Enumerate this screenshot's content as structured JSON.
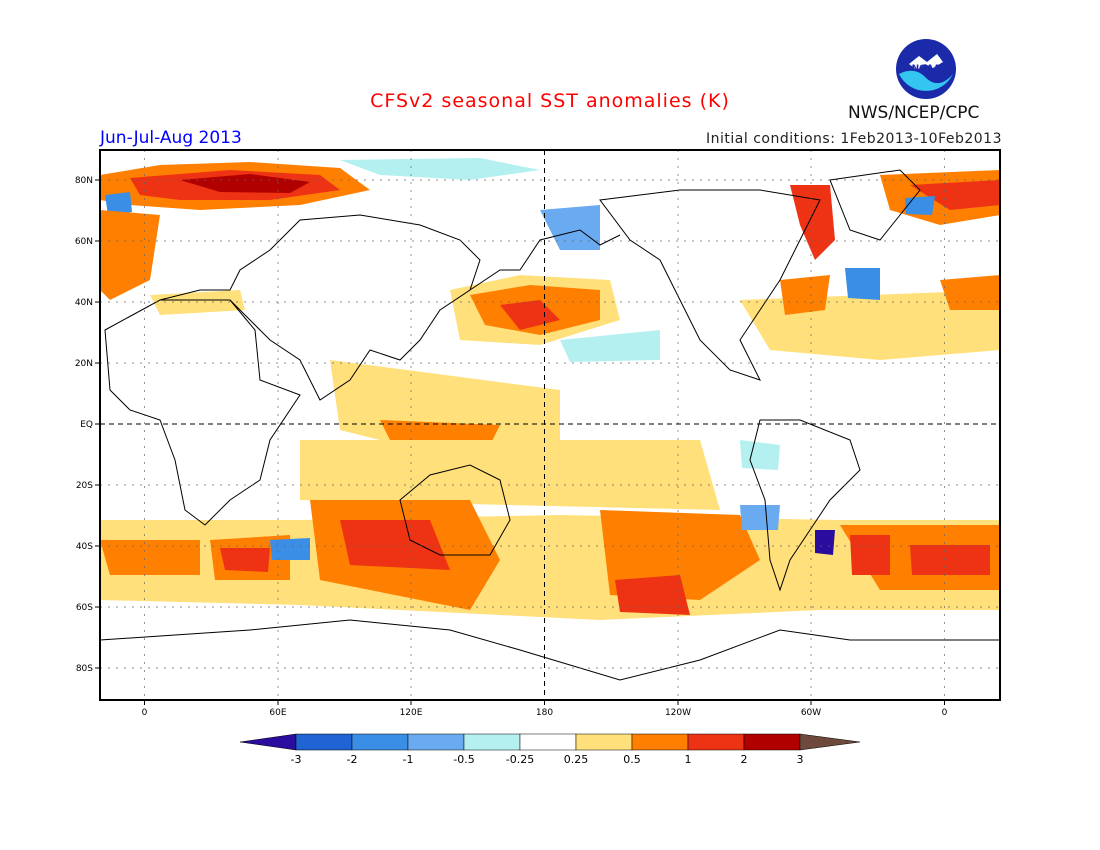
{
  "header": {
    "title": "CFSv2 seasonal SST anomalies (K)",
    "season": "Jun-Jul-Aug 2013",
    "initial_conditions": "Initial conditions: 1Feb2013-10Feb2013",
    "agency": "NWS/NCEP/CPC",
    "logo_text": "NOAA",
    "colors": {
      "title": "#ff0000",
      "season": "#0000ff"
    }
  },
  "map": {
    "lon_ticks": [
      "0",
      "60E",
      "120E",
      "180",
      "120W",
      "60W",
      "0"
    ],
    "lat_ticks": [
      "80N",
      "60N",
      "40N",
      "20N",
      "EQ",
      "20S",
      "40S",
      "60S",
      "80S"
    ]
  },
  "colorbar": {
    "labels": [
      "-3",
      "-2",
      "-1",
      "-0.5",
      "-0.25",
      "0.25",
      "0.5",
      "1",
      "2",
      "3"
    ],
    "colors": [
      "#2a0d9e",
      "#1f64d2",
      "#3a8ee6",
      "#6aaaf0",
      "#b4f0f0",
      "#ffffff",
      "#ffe07a",
      "#ff7f00",
      "#ee3314",
      "#b00000",
      "#6e4a3c"
    ]
  }
}
